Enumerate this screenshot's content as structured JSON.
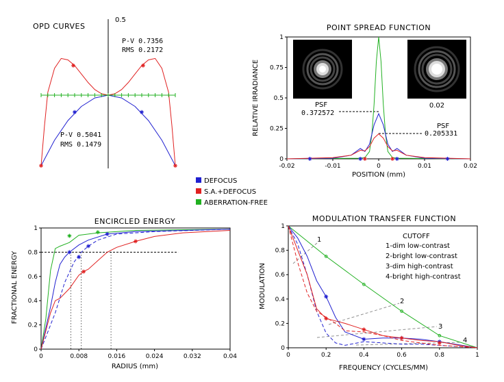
{
  "colors": {
    "defocus": "#2020d0",
    "sa_defocus": "#e02020",
    "aberration_free": "#20b020",
    "grey": "#808080",
    "psf_image_bg": "#000000"
  },
  "legend": {
    "items": [
      {
        "label": "DEFOCUS",
        "color": "#2020d0"
      },
      {
        "label": "S.A.+DEFOCUS",
        "color": "#e02020"
      },
      {
        "label": "ABERRATION-FREE",
        "color": "#20b020"
      }
    ]
  },
  "chart_data": [
    {
      "id": "opd",
      "type": "line",
      "title": "OPD CURVES",
      "ymax_label": "0.5",
      "xlim": [
        -1,
        1
      ],
      "ylim": [
        -0.5,
        0.5
      ],
      "annotations": {
        "red_pv": "P-V 0.7356",
        "red_rms": "RMS 0.2172",
        "blue_pv": "P-V 0.5041",
        "blue_rms": "RMS 0.1479"
      },
      "series": [
        {
          "key": "defocus",
          "x": [
            -1,
            -0.8,
            -0.6,
            -0.4,
            -0.2,
            0,
            0.2,
            0.4,
            0.6,
            0.8,
            1
          ],
          "y": [
            -0.5,
            -0.32,
            -0.18,
            -0.08,
            -0.02,
            0,
            -0.02,
            -0.08,
            -0.18,
            -0.32,
            -0.5
          ]
        },
        {
          "key": "sa_defocus",
          "x": [
            -1,
            -0.95,
            -0.9,
            -0.8,
            -0.7,
            -0.6,
            -0.5,
            -0.4,
            -0.3,
            -0.2,
            -0.1,
            0,
            0.1,
            0.2,
            0.3,
            0.4,
            0.5,
            0.6,
            0.7,
            0.8,
            0.9,
            0.95,
            1
          ],
          "y": [
            -0.5,
            -0.22,
            0.02,
            0.19,
            0.26,
            0.25,
            0.21,
            0.15,
            0.09,
            0.04,
            0.01,
            0,
            0.01,
            0.04,
            0.09,
            0.15,
            0.21,
            0.25,
            0.26,
            0.19,
            0.02,
            -0.22,
            -0.5
          ]
        },
        {
          "key": "aberration_free",
          "x": [
            -1,
            1
          ],
          "y": [
            0,
            0
          ]
        }
      ]
    },
    {
      "id": "psf",
      "type": "line",
      "title": "POINT SPREAD FUNCTION",
      "xlabel": "POSITION (mm)",
      "ylabel": "RELATIVE IRRADIANCE",
      "xlim": [
        -0.02,
        0.02
      ],
      "ylim": [
        0,
        1
      ],
      "xticks": [
        "-0.02",
        "-0.01",
        "0",
        "0.01",
        "0.02"
      ],
      "yticks": [
        "0",
        "0.25",
        "0.5",
        "0.75",
        "1"
      ],
      "annotations": {
        "psf_blue_label": "PSF",
        "psf_blue_value": "0.372572",
        "psf_red_label": "PSF",
        "psf_red_value": "0.205331",
        "image_right_label": "0.02"
      },
      "series": [
        {
          "key": "aberration_free",
          "x": [
            -0.02,
            -0.004,
            -0.003,
            -0.002,
            -0.0015,
            -0.001,
            -0.0005,
            0,
            0.0005,
            0.001,
            0.0015,
            0.002,
            0.003,
            0.004,
            0.02
          ],
          "y": [
            0,
            0.005,
            0.01,
            0.06,
            0.2,
            0.45,
            0.8,
            1.0,
            0.8,
            0.45,
            0.2,
            0.06,
            0.01,
            0.005,
            0
          ]
        },
        {
          "key": "defocus",
          "x": [
            -0.02,
            -0.01,
            -0.006,
            -0.004,
            -0.003,
            -0.002,
            -0.001,
            0,
            0.001,
            0.002,
            0.003,
            0.004,
            0.006,
            0.01,
            0.02
          ],
          "y": [
            0,
            0.005,
            0.03,
            0.085,
            0.06,
            0.12,
            0.28,
            0.37,
            0.28,
            0.12,
            0.06,
            0.085,
            0.03,
            0.005,
            0
          ]
        },
        {
          "key": "sa_defocus",
          "x": [
            -0.02,
            -0.01,
            -0.006,
            -0.004,
            -0.003,
            -0.002,
            -0.001,
            0,
            0.001,
            0.002,
            0.003,
            0.004,
            0.006,
            0.01,
            0.02
          ],
          "y": [
            0,
            0.01,
            0.03,
            0.07,
            0.065,
            0.1,
            0.17,
            0.205,
            0.17,
            0.1,
            0.065,
            0.07,
            0.03,
            0.01,
            0
          ]
        }
      ]
    },
    {
      "id": "ee",
      "type": "line",
      "title": "ENCIRCLED ENERGY",
      "xlabel": "RADIUS (mm)",
      "ylabel": "FRACTIONAL ENERGY",
      "xlim": [
        0,
        0.04
      ],
      "ylim": [
        0,
        1
      ],
      "xticks": [
        "0",
        "0.008",
        "0.016",
        "0.024",
        "0.032",
        "0.04"
      ],
      "yticks": [
        "0",
        "0.2",
        "0.4",
        "0.6",
        "0.8",
        "1"
      ],
      "reference_y": 0.8,
      "series": [
        {
          "key": "aberration_free",
          "x": [
            0,
            0.001,
            0.002,
            0.003,
            0.004,
            0.006,
            0.008,
            0.012,
            0.02,
            0.04
          ],
          "y": [
            0,
            0.25,
            0.65,
            0.83,
            0.85,
            0.88,
            0.94,
            0.96,
            0.98,
            0.99
          ]
        },
        {
          "key": "defocus",
          "x": [
            0,
            0.002,
            0.003,
            0.004,
            0.005,
            0.006,
            0.008,
            0.01,
            0.014,
            0.02,
            0.04
          ],
          "y": [
            0,
            0.35,
            0.55,
            0.7,
            0.76,
            0.8,
            0.86,
            0.9,
            0.95,
            0.97,
            0.99
          ]
        },
        {
          "key": "defocus_dim",
          "x": [
            0,
            0.003,
            0.005,
            0.007,
            0.0085,
            0.01,
            0.012,
            0.016,
            0.024,
            0.04
          ],
          "y": [
            0,
            0.3,
            0.55,
            0.72,
            0.8,
            0.85,
            0.9,
            0.95,
            0.97,
            0.99
          ]
        },
        {
          "key": "sa_defocus",
          "x": [
            0,
            0.002,
            0.003,
            0.004,
            0.006,
            0.008,
            0.009,
            0.01,
            0.012,
            0.014,
            0.016,
            0.02,
            0.024,
            0.03,
            0.04
          ],
          "y": [
            0,
            0.3,
            0.4,
            0.42,
            0.5,
            0.61,
            0.64,
            0.66,
            0.73,
            0.8,
            0.84,
            0.89,
            0.93,
            0.96,
            0.98
          ]
        }
      ],
      "markers": [
        0.0063,
        0.0085,
        0.0148
      ]
    },
    {
      "id": "mtf",
      "type": "line",
      "title": "MODULATION TRANSFER FUNCTION",
      "xlabel": "FREQUENCY (CYCLES/MM)",
      "ylabel": "MODULATION",
      "xlim": [
        0,
        1
      ],
      "ylim": [
        0,
        1
      ],
      "xticks": [
        "0",
        "0.2",
        "0.4",
        "0.6",
        "0.8",
        "1"
      ],
      "yticks": [
        "0",
        "0.2",
        "0.4",
        "0.6",
        "0.8",
        "1"
      ],
      "cutoff_title": "CUTOFF",
      "cutoff_items": [
        "1-dim low-contrast",
        "2-bright low-contrast",
        "3-dim high-contrast",
        "4-bright high-contrast"
      ],
      "cutoff_numbers": [
        "1",
        "2",
        "3",
        "4"
      ],
      "series": [
        {
          "key": "aberration_free",
          "x": [
            0,
            0.2,
            0.4,
            0.6,
            0.8,
            1
          ],
          "y": [
            1,
            0.75,
            0.52,
            0.3,
            0.1,
            0
          ]
        },
        {
          "key": "defocus",
          "x": [
            0,
            0.05,
            0.1,
            0.15,
            0.2,
            0.25,
            0.3,
            0.4,
            0.5,
            0.6,
            0.7,
            0.8,
            1
          ],
          "y": [
            1,
            0.9,
            0.75,
            0.55,
            0.42,
            0.25,
            0.13,
            0.07,
            0.08,
            0.08,
            0.07,
            0.05,
            0
          ]
        },
        {
          "key": "defocus_dash",
          "x": [
            0,
            0.05,
            0.1,
            0.15,
            0.2,
            0.25,
            0.3,
            0.4,
            0.5,
            0.6,
            0.7,
            0.8,
            1
          ],
          "y": [
            1,
            0.85,
            0.6,
            0.3,
            0.12,
            0.04,
            0.02,
            0.05,
            0.04,
            0.03,
            0.03,
            0.02,
            0
          ]
        },
        {
          "key": "sa_defocus",
          "x": [
            0,
            0.05,
            0.1,
            0.15,
            0.2,
            0.25,
            0.3,
            0.4,
            0.5,
            0.6,
            0.7,
            0.8,
            0.9,
            1
          ],
          "y": [
            1,
            0.8,
            0.6,
            0.32,
            0.24,
            0.22,
            0.2,
            0.15,
            0.1,
            0.08,
            0.06,
            0.05,
            0.02,
            0
          ]
        },
        {
          "key": "sa_defocus_dash",
          "x": [
            0,
            0.05,
            0.1,
            0.15,
            0.2,
            0.25,
            0.3,
            0.4,
            0.5,
            0.6,
            0.7,
            0.8,
            1
          ],
          "y": [
            1,
            0.7,
            0.45,
            0.3,
            0.25,
            0.2,
            0.14,
            0.13,
            0.1,
            0.06,
            0.04,
            0.02,
            0
          ]
        }
      ]
    }
  ]
}
